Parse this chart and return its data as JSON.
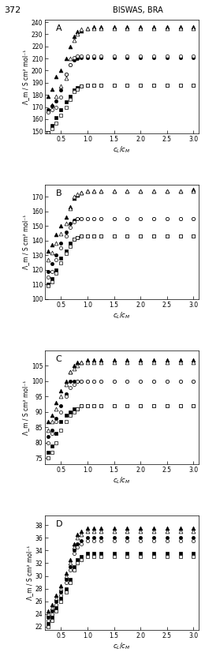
{
  "panels": [
    "A",
    "B",
    "C",
    "D"
  ],
  "x_values": [
    0.25,
    0.33,
    0.4,
    0.5,
    0.6,
    0.67,
    0.75,
    0.8,
    0.875,
    1.0,
    1.125,
    1.25,
    1.5,
    1.75,
    2.0,
    2.25,
    2.5,
    2.75,
    3.0
  ],
  "panel_A": {
    "ylim": [
      148,
      242
    ],
    "yticks": [
      150,
      160,
      170,
      180,
      190,
      200,
      210,
      220,
      230,
      240
    ],
    "ylabel": "Λ_m / S cm² mol⁻¹",
    "series": {
      "filled_triangle": [
        179,
        185,
        195,
        200,
        210,
        220,
        228,
        232,
        233,
        235,
        236,
        236,
        236,
        236,
        236,
        236,
        236,
        236,
        236
      ],
      "open_triangle": [
        167,
        172,
        179,
        187,
        194,
        210,
        225,
        230,
        234,
        235,
        235,
        235,
        235,
        235,
        235,
        235,
        235,
        235,
        235
      ],
      "filled_circle": [
        168,
        171,
        175,
        184,
        197,
        205,
        209,
        210,
        211,
        211,
        211,
        211,
        211,
        211,
        211,
        211,
        211,
        211,
        211
      ],
      "open_circle": [
        166,
        168,
        170,
        178,
        197,
        205,
        211,
        212,
        212,
        212,
        212,
        212,
        212,
        212,
        212,
        212,
        212,
        212,
        212
      ],
      "filled_square": [
        149,
        155,
        161,
        168,
        174,
        179,
        184,
        186,
        187,
        188,
        188,
        188,
        188,
        188,
        188,
        188,
        188,
        188,
        188
      ],
      "open_square": [
        149,
        152,
        157,
        163,
        170,
        176,
        183,
        185,
        187,
        188,
        188,
        188,
        188,
        188,
        188,
        188,
        188,
        188,
        188
      ]
    }
  },
  "panel_B": {
    "ylim": [
      100,
      178
    ],
    "yticks": [
      100,
      110,
      120,
      130,
      140,
      150,
      160,
      170
    ],
    "ylabel": "Λ_m / S cm² mol⁻¹",
    "series": {
      "filled_triangle": [
        133,
        137,
        144,
        150,
        156,
        163,
        169,
        171,
        173,
        174,
        174,
        174,
        174,
        174,
        174,
        174,
        174,
        174,
        175
      ],
      "open_triangle": [
        127,
        132,
        138,
        145,
        152,
        162,
        170,
        172,
        173,
        174,
        174,
        174,
        174,
        174,
        174,
        174,
        174,
        174,
        174
      ],
      "filled_circle": [
        119,
        124,
        130,
        138,
        146,
        152,
        154,
        155,
        155,
        155,
        155,
        155,
        155,
        155,
        155,
        155,
        155,
        155,
        155
      ],
      "open_circle": [
        115,
        119,
        127,
        135,
        143,
        149,
        153,
        155,
        155,
        155,
        155,
        155,
        155,
        155,
        155,
        155,
        155,
        155,
        155
      ],
      "filled_square": [
        110,
        114,
        120,
        128,
        133,
        138,
        141,
        142,
        143,
        143,
        143,
        143,
        143,
        143,
        143,
        143,
        143,
        143,
        143
      ],
      "open_square": [
        109,
        112,
        118,
        125,
        131,
        136,
        141,
        142,
        143,
        143,
        143,
        143,
        143,
        143,
        143,
        143,
        143,
        143,
        143
      ]
    }
  },
  "panel_C": {
    "ylim": [
      73,
      110
    ],
    "yticks": [
      75,
      80,
      85,
      90,
      95,
      100,
      105
    ],
    "ylabel": "Λ_m / S cm² mol⁻¹",
    "series": {
      "filled_triangle": [
        87,
        89,
        93,
        97,
        100,
        103,
        105,
        106,
        106,
        107,
        107,
        107,
        107,
        107,
        107,
        107,
        107,
        107,
        107
      ],
      "open_triangle": [
        84,
        87,
        91,
        95,
        99,
        103,
        104,
        105,
        106,
        106,
        106,
        106,
        106,
        106,
        106,
        106,
        106,
        106,
        106
      ],
      "filled_circle": [
        82,
        84,
        88,
        92,
        96,
        100,
        100,
        100,
        100,
        100,
        100,
        100,
        100,
        100,
        100,
        100,
        100,
        100,
        100
      ],
      "open_circle": [
        80,
        83,
        87,
        90,
        95,
        98,
        99,
        100,
        100,
        100,
        100,
        100,
        100,
        100,
        100,
        100,
        100,
        100,
        100
      ],
      "filled_square": [
        77,
        79,
        83,
        87,
        89,
        90,
        91,
        91,
        92,
        92,
        92,
        92,
        92,
        92,
        92,
        92,
        92,
        92,
        92
      ],
      "open_square": [
        75,
        77,
        80,
        84,
        87,
        89,
        90,
        91,
        92,
        92,
        92,
        92,
        92,
        92,
        92,
        92,
        92,
        92,
        92
      ]
    }
  },
  "panel_D": {
    "ylim": [
      21.5,
      39.5
    ],
    "yticks": [
      22,
      24,
      26,
      28,
      30,
      32,
      34,
      36,
      38
    ],
    "ylabel": "Λ_m / S cm² mol⁻¹",
    "series": {
      "filled_triangle": [
        24.5,
        25.5,
        27.0,
        28.5,
        30.5,
        32.5,
        35.0,
        36.5,
        37.0,
        37.5,
        37.5,
        37.5,
        37.5,
        37.5,
        37.5,
        37.5,
        37.5,
        37.5,
        37.5
      ],
      "open_triangle": [
        24.0,
        25.0,
        26.5,
        28.0,
        30.0,
        32.0,
        34.5,
        36.0,
        36.5,
        37.0,
        37.0,
        37.0,
        37.0,
        37.0,
        37.0,
        37.0,
        37.0,
        37.0,
        37.0
      ],
      "filled_circle": [
        23.5,
        24.5,
        26.0,
        27.5,
        29.5,
        31.5,
        34.0,
        35.0,
        35.5,
        36.0,
        36.0,
        36.0,
        36.0,
        36.0,
        36.0,
        36.0,
        36.0,
        36.0,
        36.0
      ],
      "open_circle": [
        23.0,
        24.0,
        25.5,
        27.0,
        29.0,
        31.0,
        33.5,
        34.5,
        35.0,
        35.5,
        35.5,
        35.5,
        35.5,
        35.5,
        35.5,
        35.5,
        35.5,
        35.5,
        35.5
      ],
      "filled_square": [
        22.5,
        23.5,
        25.0,
        26.5,
        28.0,
        29.5,
        31.5,
        32.5,
        33.0,
        33.5,
        33.5,
        33.5,
        33.5,
        33.5,
        33.5,
        33.5,
        33.5,
        33.5,
        33.5
      ],
      "open_square": [
        22.0,
        23.0,
        24.5,
        26.0,
        27.5,
        29.0,
        31.0,
        32.0,
        32.5,
        33.0,
        33.0,
        33.0,
        33.0,
        33.0,
        33.0,
        33.0,
        33.0,
        33.0,
        33.0
      ]
    }
  },
  "xlim": [
    0.2,
    3.1
  ],
  "xticks": [
    0.5,
    1.0,
    1.5,
    2.0,
    2.5,
    3.0
  ],
  "xtick_labels": [
    "0.5",
    "1.0",
    "1.5",
    "2.0",
    "2.5",
    "3.0"
  ],
  "xlabel_AB": "$c_L/c_M$",
  "xlabel_CD": "$c_L/c_M$",
  "header_text": "372",
  "header_right": "BISWAS, BRA",
  "marker_styles": {
    "filled_triangle": {
      "marker": "^",
      "mfc": "black",
      "ms": 3.5
    },
    "open_triangle": {
      "marker": "^",
      "mfc": "white",
      "ms": 3.5
    },
    "filled_circle": {
      "marker": "o",
      "mfc": "black",
      "ms": 3.0
    },
    "open_circle": {
      "marker": "o",
      "mfc": "white",
      "ms": 3.0
    },
    "filled_square": {
      "marker": "s",
      "mfc": "black",
      "ms": 3.0
    },
    "open_square": {
      "marker": "s",
      "mfc": "white",
      "ms": 3.0
    }
  }
}
